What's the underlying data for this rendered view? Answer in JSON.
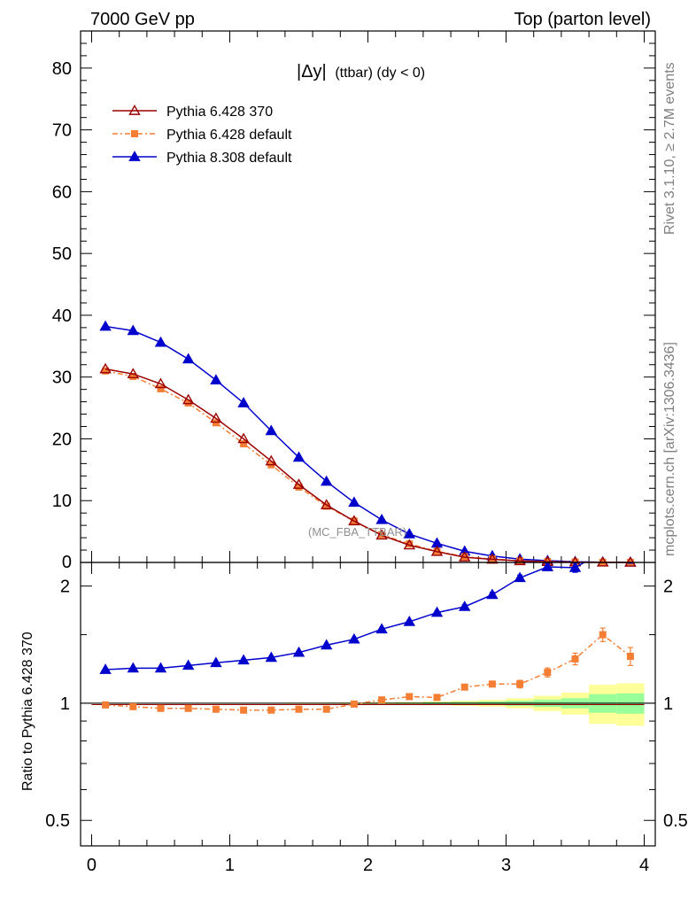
{
  "header": {
    "left": "7000 GeV pp",
    "right": "Top (parton level)"
  },
  "side_text": {
    "rivet": "Rivet 3.1.10, ≥ 2.7M events",
    "mcplots": "mcplots.cern.ch [arXiv:1306.3436]"
  },
  "plot": {
    "title_main": "|Δy|",
    "title_sub": "(ttbar) (dy < 0)",
    "watermark": "(MC_FBA_TTBAR)",
    "ratio_ylabel": "Ratio to Pythia 6.428 370"
  },
  "chart_data": [
    {
      "type": "line",
      "name": "main",
      "xlim": [
        -0.08,
        4.08
      ],
      "ylim": [
        0,
        86
      ],
      "xticks": [
        0,
        1,
        2,
        3,
        4
      ],
      "yticks": [
        10,
        20,
        30,
        40,
        50,
        60,
        70,
        80
      ],
      "ytick_labels": [
        "10",
        "20",
        "30",
        "40",
        "50",
        "60",
        "70",
        "80"
      ],
      "ybottom_label": "0",
      "x": [
        0.1,
        0.3,
        0.5,
        0.7,
        0.9,
        1.1,
        1.3,
        1.5,
        1.7,
        1.9,
        2.1,
        2.3,
        2.5,
        2.7,
        2.9,
        3.1,
        3.3,
        3.5,
        3.7,
        3.9
      ],
      "series": [
        {
          "name": "Pythia 6.428 370",
          "color": "#9b0000",
          "marker": "open-triangle",
          "dash": "solid",
          "values": [
            31.3,
            30.5,
            28.9,
            26.3,
            23.3,
            20.0,
            16.4,
            12.6,
            9.3,
            6.7,
            4.4,
            2.8,
            1.75,
            0.85,
            0.5,
            0.25,
            0.12,
            0.05,
            0.02,
            0.01
          ]
        },
        {
          "name": "Pythia 6.428 default",
          "color": "#f47e34",
          "marker": "square",
          "dash": "dashdot",
          "values": [
            31.0,
            30.1,
            28.1,
            25.8,
            22.6,
            19.2,
            15.8,
            12.2,
            9.1,
            6.7,
            4.5,
            3.0,
            1.8,
            0.95,
            0.55,
            0.27,
            0.15,
            0.07,
            0.03,
            0.015
          ]
        },
        {
          "name": "Pythia 8.308 default",
          "color": "#0000cd",
          "marker": "filled-triangle",
          "dash": "solid",
          "values": [
            38.2,
            37.5,
            35.6,
            32.9,
            29.5,
            25.8,
            21.3,
            17.0,
            13.1,
            9.7,
            6.9,
            4.6,
            3.1,
            1.8,
            1.05,
            0.55,
            0.28,
            0.12,
            0.05,
            0.02
          ]
        }
      ]
    },
    {
      "type": "line",
      "name": "ratio",
      "ylog": true,
      "ylim": [
        0.43,
        2.3
      ],
      "yticks": [
        0.5,
        1,
        2
      ],
      "ytick_labels": [
        "0.5",
        "1",
        "2"
      ],
      "xticks": [
        0,
        1,
        2,
        3,
        4
      ],
      "xtick_labels": [
        "0",
        "1",
        "2",
        "3",
        "4"
      ],
      "x": [
        0.1,
        0.3,
        0.5,
        0.7,
        0.9,
        1.1,
        1.3,
        1.5,
        1.7,
        1.9,
        2.1,
        2.3,
        2.5,
        2.7,
        2.9,
        3.1,
        3.3,
        3.5,
        3.7,
        3.9
      ],
      "bands": {
        "green_halfwidth": [
          0.002,
          0.002,
          0.002,
          0.002,
          0.002,
          0.002,
          0.002,
          0.002,
          0.002,
          0.003,
          0.003,
          0.004,
          0.006,
          0.008,
          0.011,
          0.015,
          0.022,
          0.03,
          0.055,
          0.06
        ],
        "yellow_halfwidth": [
          0.003,
          0.003,
          0.003,
          0.003,
          0.003,
          0.003,
          0.003,
          0.004,
          0.004,
          0.005,
          0.006,
          0.008,
          0.011,
          0.015,
          0.02,
          0.03,
          0.045,
          0.065,
          0.115,
          0.125
        ]
      },
      "series": [
        {
          "name": "Pythia 6.428 370",
          "color": "#9b0000",
          "values": [
            1,
            1,
            1,
            1,
            1,
            1,
            1,
            1,
            1,
            1,
            1,
            1,
            1,
            1,
            1,
            1,
            1,
            1,
            1,
            1
          ]
        },
        {
          "name": "Pythia 6.428 default",
          "color": "#f47e34",
          "marker": "square",
          "dash": "dashdot",
          "values": [
            0.99,
            0.98,
            0.97,
            0.97,
            0.965,
            0.96,
            0.96,
            0.965,
            0.965,
            0.995,
            1.02,
            1.04,
            1.035,
            1.1,
            1.12,
            1.12,
            1.2,
            1.3,
            1.5,
            1.32
          ],
          "errors": [
            0.003,
            0.003,
            0.003,
            0.003,
            0.003,
            0.003,
            0.003,
            0.004,
            0.004,
            0.005,
            0.006,
            0.008,
            0.01,
            0.014,
            0.018,
            0.025,
            0.032,
            0.045,
            0.06,
            0.07
          ]
        },
        {
          "name": "Pythia 8.308 default",
          "color": "#0000cd",
          "marker": "filled-triangle",
          "dash": "solid",
          "values": [
            1.22,
            1.23,
            1.23,
            1.25,
            1.27,
            1.29,
            1.31,
            1.35,
            1.41,
            1.46,
            1.55,
            1.62,
            1.71,
            1.77,
            1.9,
            2.1,
            2.24,
            2.23,
            2.45,
            2.38
          ],
          "errors": [
            0.003,
            0.003,
            0.003,
            0.003,
            0.003,
            0.004,
            0.004,
            0.005,
            0.006,
            0.007,
            0.009,
            0.012,
            0.016,
            0.021,
            0.027,
            0.035,
            0.045,
            0.06,
            0.08,
            0.09
          ]
        }
      ]
    }
  ]
}
